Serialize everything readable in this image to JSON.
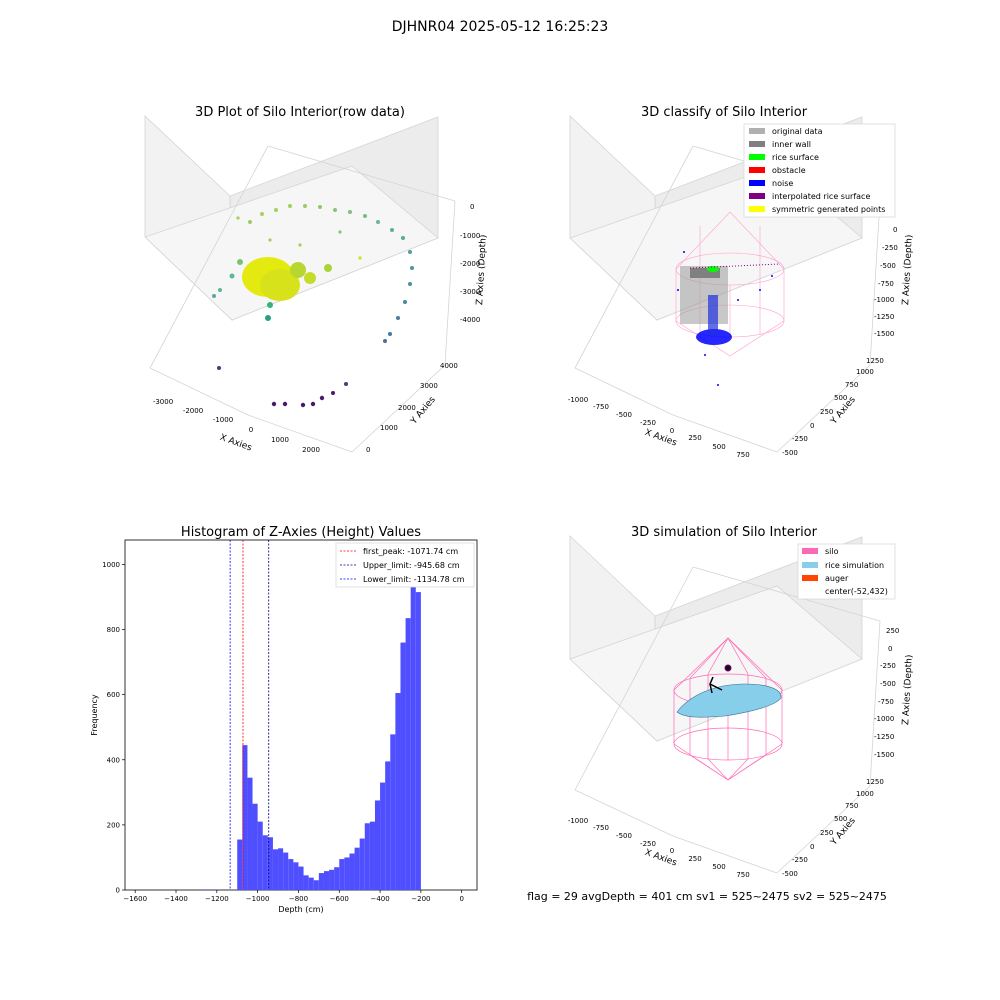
{
  "figure": {
    "suptitle": "DJHNR04 2025-05-12 16:25:23",
    "footer": "flag = 29  avgDepth = 401 cm  sv1 = 525~2475  sv2 = 525~2475"
  },
  "colors": {
    "hist_bar": "#4f4fff",
    "first_peak": "#ff0000",
    "upper_limit": "#000080",
    "lower_limit": "#0000ff",
    "silo": "#ff69b4",
    "rice_simulation": "#87ceeb",
    "auger": "#ff4500"
  },
  "panels": {
    "p1": {
      "title": "3D Plot of Silo Interior(row data)",
      "xlabel": "X Axies",
      "ylabel": "Y Axies",
      "zlabel": "Z Axies (Depth)",
      "xticks": [
        "-3000",
        "-2000",
        "-1000",
        "0",
        "1000",
        "2000"
      ],
      "yticks": [
        "0",
        "1000",
        "2000",
        "3000",
        "4000"
      ],
      "zticks": [
        "0",
        "-1000",
        "-2000",
        "-3000",
        "-4000"
      ]
    },
    "p2": {
      "title": "3D classify of Silo Interior",
      "xlabel": "X Axies",
      "ylabel": "Y Axies",
      "zlabel": "Z Axies (Depth)",
      "xticks": [
        "-1000",
        "-750",
        "-500",
        "-250",
        "0",
        "250",
        "500",
        "750"
      ],
      "yticks": [
        "-500",
        "-250",
        "0",
        "250",
        "500",
        "750",
        "1000",
        "1250"
      ],
      "zticks": [
        "0",
        "-250",
        "-500",
        "-750",
        "-1000",
        "-1250",
        "-1500"
      ],
      "legend": [
        {
          "label": "original data",
          "color": "#b0b0b0"
        },
        {
          "label": "inner wall",
          "color": "#808080"
        },
        {
          "label": "rice surface",
          "color": "#00ff00"
        },
        {
          "label": "obstacle",
          "color": "#ff0000"
        },
        {
          "label": "noise",
          "color": "#0000ff"
        },
        {
          "label": "interpolated rice surface",
          "color": "#800080"
        },
        {
          "label": "symmetric generated points",
          "color": "#ffff00"
        }
      ]
    },
    "p4": {
      "title": "3D simulation of Silo Interior",
      "xlabel": "X Axies",
      "ylabel": "Y Axies",
      "zlabel": "Z Axies (Depth)",
      "xticks": [
        "-1000",
        "-750",
        "-500",
        "-250",
        "0",
        "250",
        "500",
        "750"
      ],
      "yticks": [
        "-500",
        "-250",
        "0",
        "250",
        "500",
        "750",
        "1000",
        "1250"
      ],
      "zticks": [
        "250",
        "0",
        "-250",
        "-500",
        "-750",
        "-1000",
        "-1250",
        "-1500"
      ],
      "legend": [
        {
          "label": "silo",
          "color": "#ff69b4"
        },
        {
          "label": "rice simulation",
          "color": "#87ceeb"
        },
        {
          "label": "auger",
          "color": "#ff4500"
        },
        {
          "label": "center(-52,432)",
          "color": ""
        }
      ]
    }
  },
  "chart_data": {
    "type": "bar",
    "title": "Histogram of Z-Axies (Height) Values",
    "xlabel": "Depth (cm)",
    "ylabel": "Frequency",
    "xlim": [
      -1650,
      75
    ],
    "ylim": [
      0,
      1075
    ],
    "xticks": [
      -1600,
      -1400,
      -1200,
      -1000,
      -800,
      -600,
      -400,
      -200,
      0
    ],
    "yticks": [
      0,
      200,
      400,
      600,
      800,
      1000
    ],
    "bin_width": 25,
    "bins": [
      {
        "x0": -1275,
        "h": 2
      },
      {
        "x0": -1225,
        "h": 2
      },
      {
        "x0": -1100,
        "h": 155
      },
      {
        "x0": -1075,
        "h": 445
      },
      {
        "x0": -1050,
        "h": 345
      },
      {
        "x0": -1025,
        "h": 265
      },
      {
        "x0": -1000,
        "h": 210
      },
      {
        "x0": -975,
        "h": 168
      },
      {
        "x0": -950,
        "h": 162
      },
      {
        "x0": -925,
        "h": 125
      },
      {
        "x0": -900,
        "h": 128
      },
      {
        "x0": -875,
        "h": 115
      },
      {
        "x0": -850,
        "h": 95
      },
      {
        "x0": -825,
        "h": 85
      },
      {
        "x0": -800,
        "h": 72
      },
      {
        "x0": -775,
        "h": 45
      },
      {
        "x0": -750,
        "h": 38
      },
      {
        "x0": -725,
        "h": 30
      },
      {
        "x0": -700,
        "h": 52
      },
      {
        "x0": -675,
        "h": 58
      },
      {
        "x0": -650,
        "h": 62
      },
      {
        "x0": -625,
        "h": 70
      },
      {
        "x0": -600,
        "h": 95
      },
      {
        "x0": -575,
        "h": 100
      },
      {
        "x0": -550,
        "h": 112
      },
      {
        "x0": -525,
        "h": 130
      },
      {
        "x0": -500,
        "h": 158
      },
      {
        "x0": -475,
        "h": 205
      },
      {
        "x0": -450,
        "h": 210
      },
      {
        "x0": -425,
        "h": 275
      },
      {
        "x0": -400,
        "h": 330
      },
      {
        "x0": -375,
        "h": 395
      },
      {
        "x0": -350,
        "h": 478
      },
      {
        "x0": -325,
        "h": 605
      },
      {
        "x0": -300,
        "h": 760
      },
      {
        "x0": -275,
        "h": 835
      },
      {
        "x0": -250,
        "h": 1010
      },
      {
        "x0": -225,
        "h": 915
      }
    ],
    "lines": [
      {
        "label": "first_peak: -1071.74 cm",
        "x": -1071.74,
        "color": "#ff0000"
      },
      {
        "label": "Upper_limit: -945.68 cm",
        "x": -945.68,
        "color": "#000080"
      },
      {
        "label": "Lower_limit: -1134.78 cm",
        "x": -1134.78,
        "color": "#0000ff"
      }
    ],
    "legend_position": "top-right"
  }
}
